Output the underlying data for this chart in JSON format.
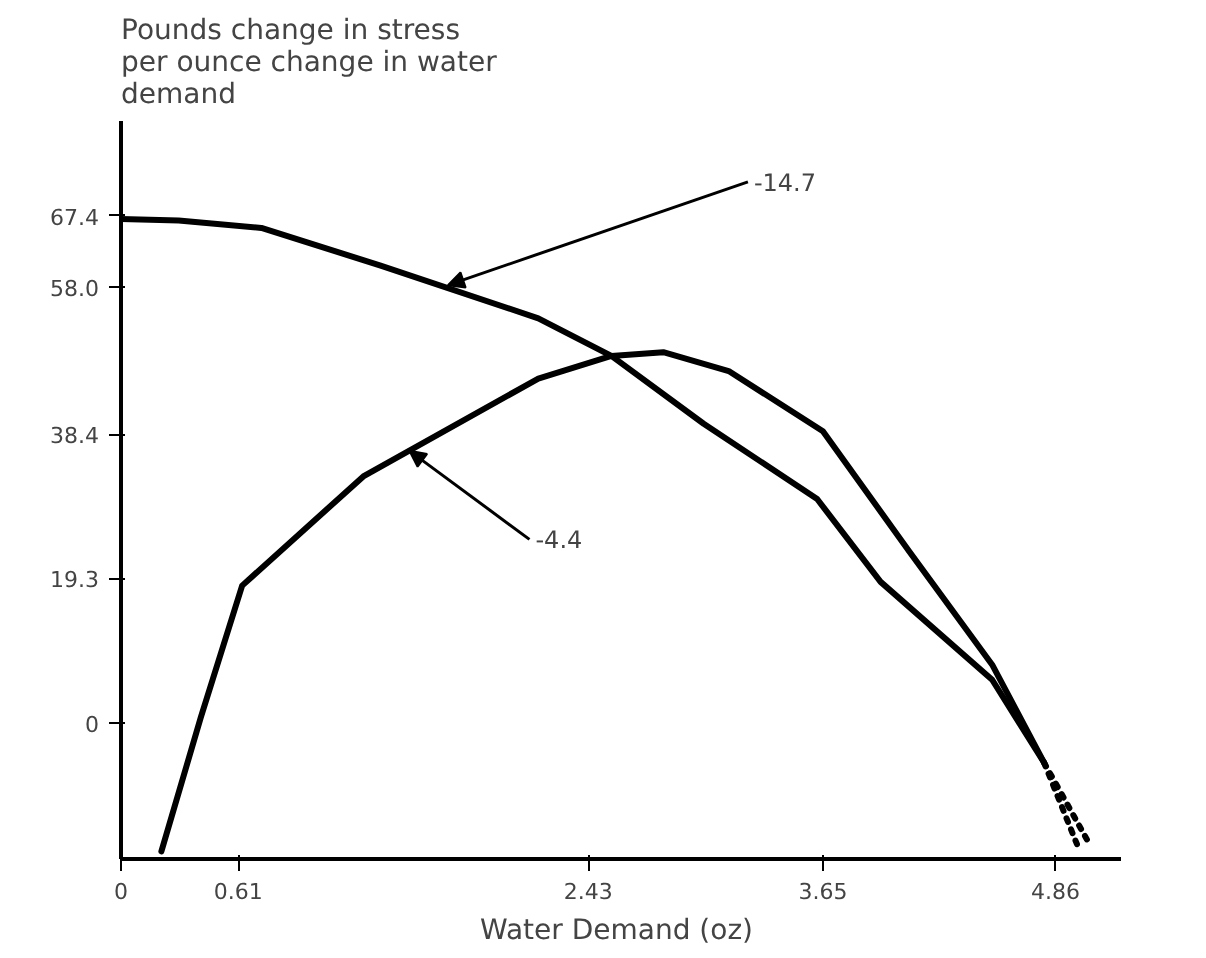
{
  "chart_data": {
    "type": "line",
    "ylabel": "Pounds change in stress\nper ounce change in water\ndemand",
    "xlabel": "Water Demand  (oz)",
    "xlim": [
      0,
      5.2
    ],
    "ylim": [
      -18,
      80
    ],
    "xticks": [
      0,
      0.61,
      2.43,
      3.65,
      4.86
    ],
    "yticks": [
      0,
      19.3,
      38.4,
      {
        "value": 58,
        "label": "58.0"
      },
      67.4
    ],
    "series": [
      {
        "color": "#000000",
        "x": [
          0,
          0.3,
          0.73,
          1.35,
          2.17,
          2.55,
          3.03,
          3.62,
          3.95,
          4.53,
          4.8
        ],
        "values": [
          67,
          66.8,
          65.8,
          60.8,
          53.8,
          48.8,
          39.8,
          29.8,
          18.8,
          5.8,
          -5.2
        ]
      },
      {
        "color": "#000000",
        "x": [
          0.21,
          0.415,
          0.63,
          1.26,
          2.17,
          2.55,
          2.82,
          3.16,
          3.65,
          4.1,
          4.53,
          4.8
        ],
        "values": [
          -17,
          0.8,
          18.3,
          32.8,
          45.8,
          48.8,
          49.3,
          46.8,
          38.8,
          22.8,
          7.8,
          -5.2
        ]
      },
      {
        "color": "#000000",
        "line_style": "dotted",
        "x": [
          4.8,
          5.04
        ],
        "values": [
          -5.2,
          -16.2
        ]
      },
      {
        "color": "#000000",
        "line_style": "dotted",
        "x": [
          4.8,
          4.98
        ],
        "values": [
          -5.2,
          -16.6
        ]
      }
    ],
    "annotations": [
      {
        "text": "-14.7",
        "x": 1.7,
        "y": 58.2
      },
      {
        "text": "-4.4",
        "x": 1.5,
        "y": 36.2
      }
    ],
    "marker": "none",
    "grid": false
  }
}
